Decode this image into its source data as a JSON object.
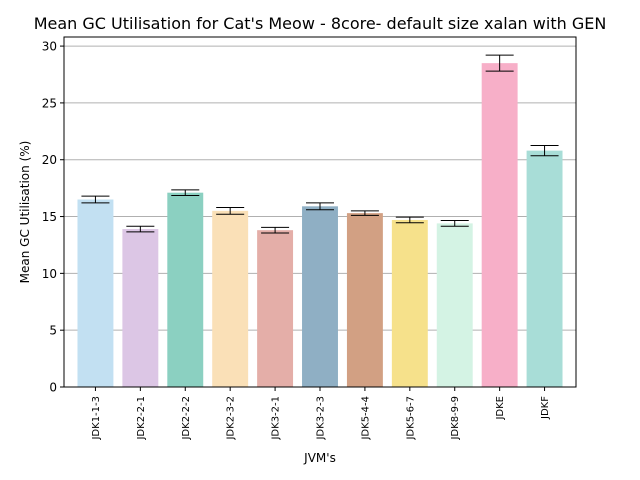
{
  "chart_data": {
    "type": "bar",
    "title": "Mean GC Utilisation for Cat's Meow - 8core- default size xalan with GEN",
    "xlabel": "JVM's",
    "ylabel": "Mean GC Utilisation (%)",
    "ylim": [
      0,
      30.8
    ],
    "yticks": [
      "0",
      "5",
      "10",
      "15",
      "20",
      "25",
      "30"
    ],
    "grid": "horizontal",
    "categories": [
      "JDK1-1-3",
      "JDK2-2-1",
      "JDK2-2-2",
      "JDK2-3-2",
      "JDK3-2-1",
      "JDK3-2-3",
      "JDK5-4-4",
      "JDK5-6-7",
      "JDK8-9-9",
      "JDKE",
      "JDKF"
    ],
    "values": [
      16.5,
      13.9,
      17.1,
      15.5,
      13.8,
      15.9,
      15.3,
      14.7,
      14.4,
      28.5,
      20.8
    ],
    "errors": [
      0.3,
      0.25,
      0.25,
      0.3,
      0.25,
      0.3,
      0.2,
      0.25,
      0.25,
      0.7,
      0.45
    ],
    "colors": [
      "#c2e0f2",
      "#dcc6e5",
      "#8bd0c1",
      "#fae0b7",
      "#e4aea8",
      "#8fafc4",
      "#d2a083",
      "#f6e18b",
      "#d4f3e4",
      "#f7afc8",
      "#a8ddd7"
    ]
  }
}
